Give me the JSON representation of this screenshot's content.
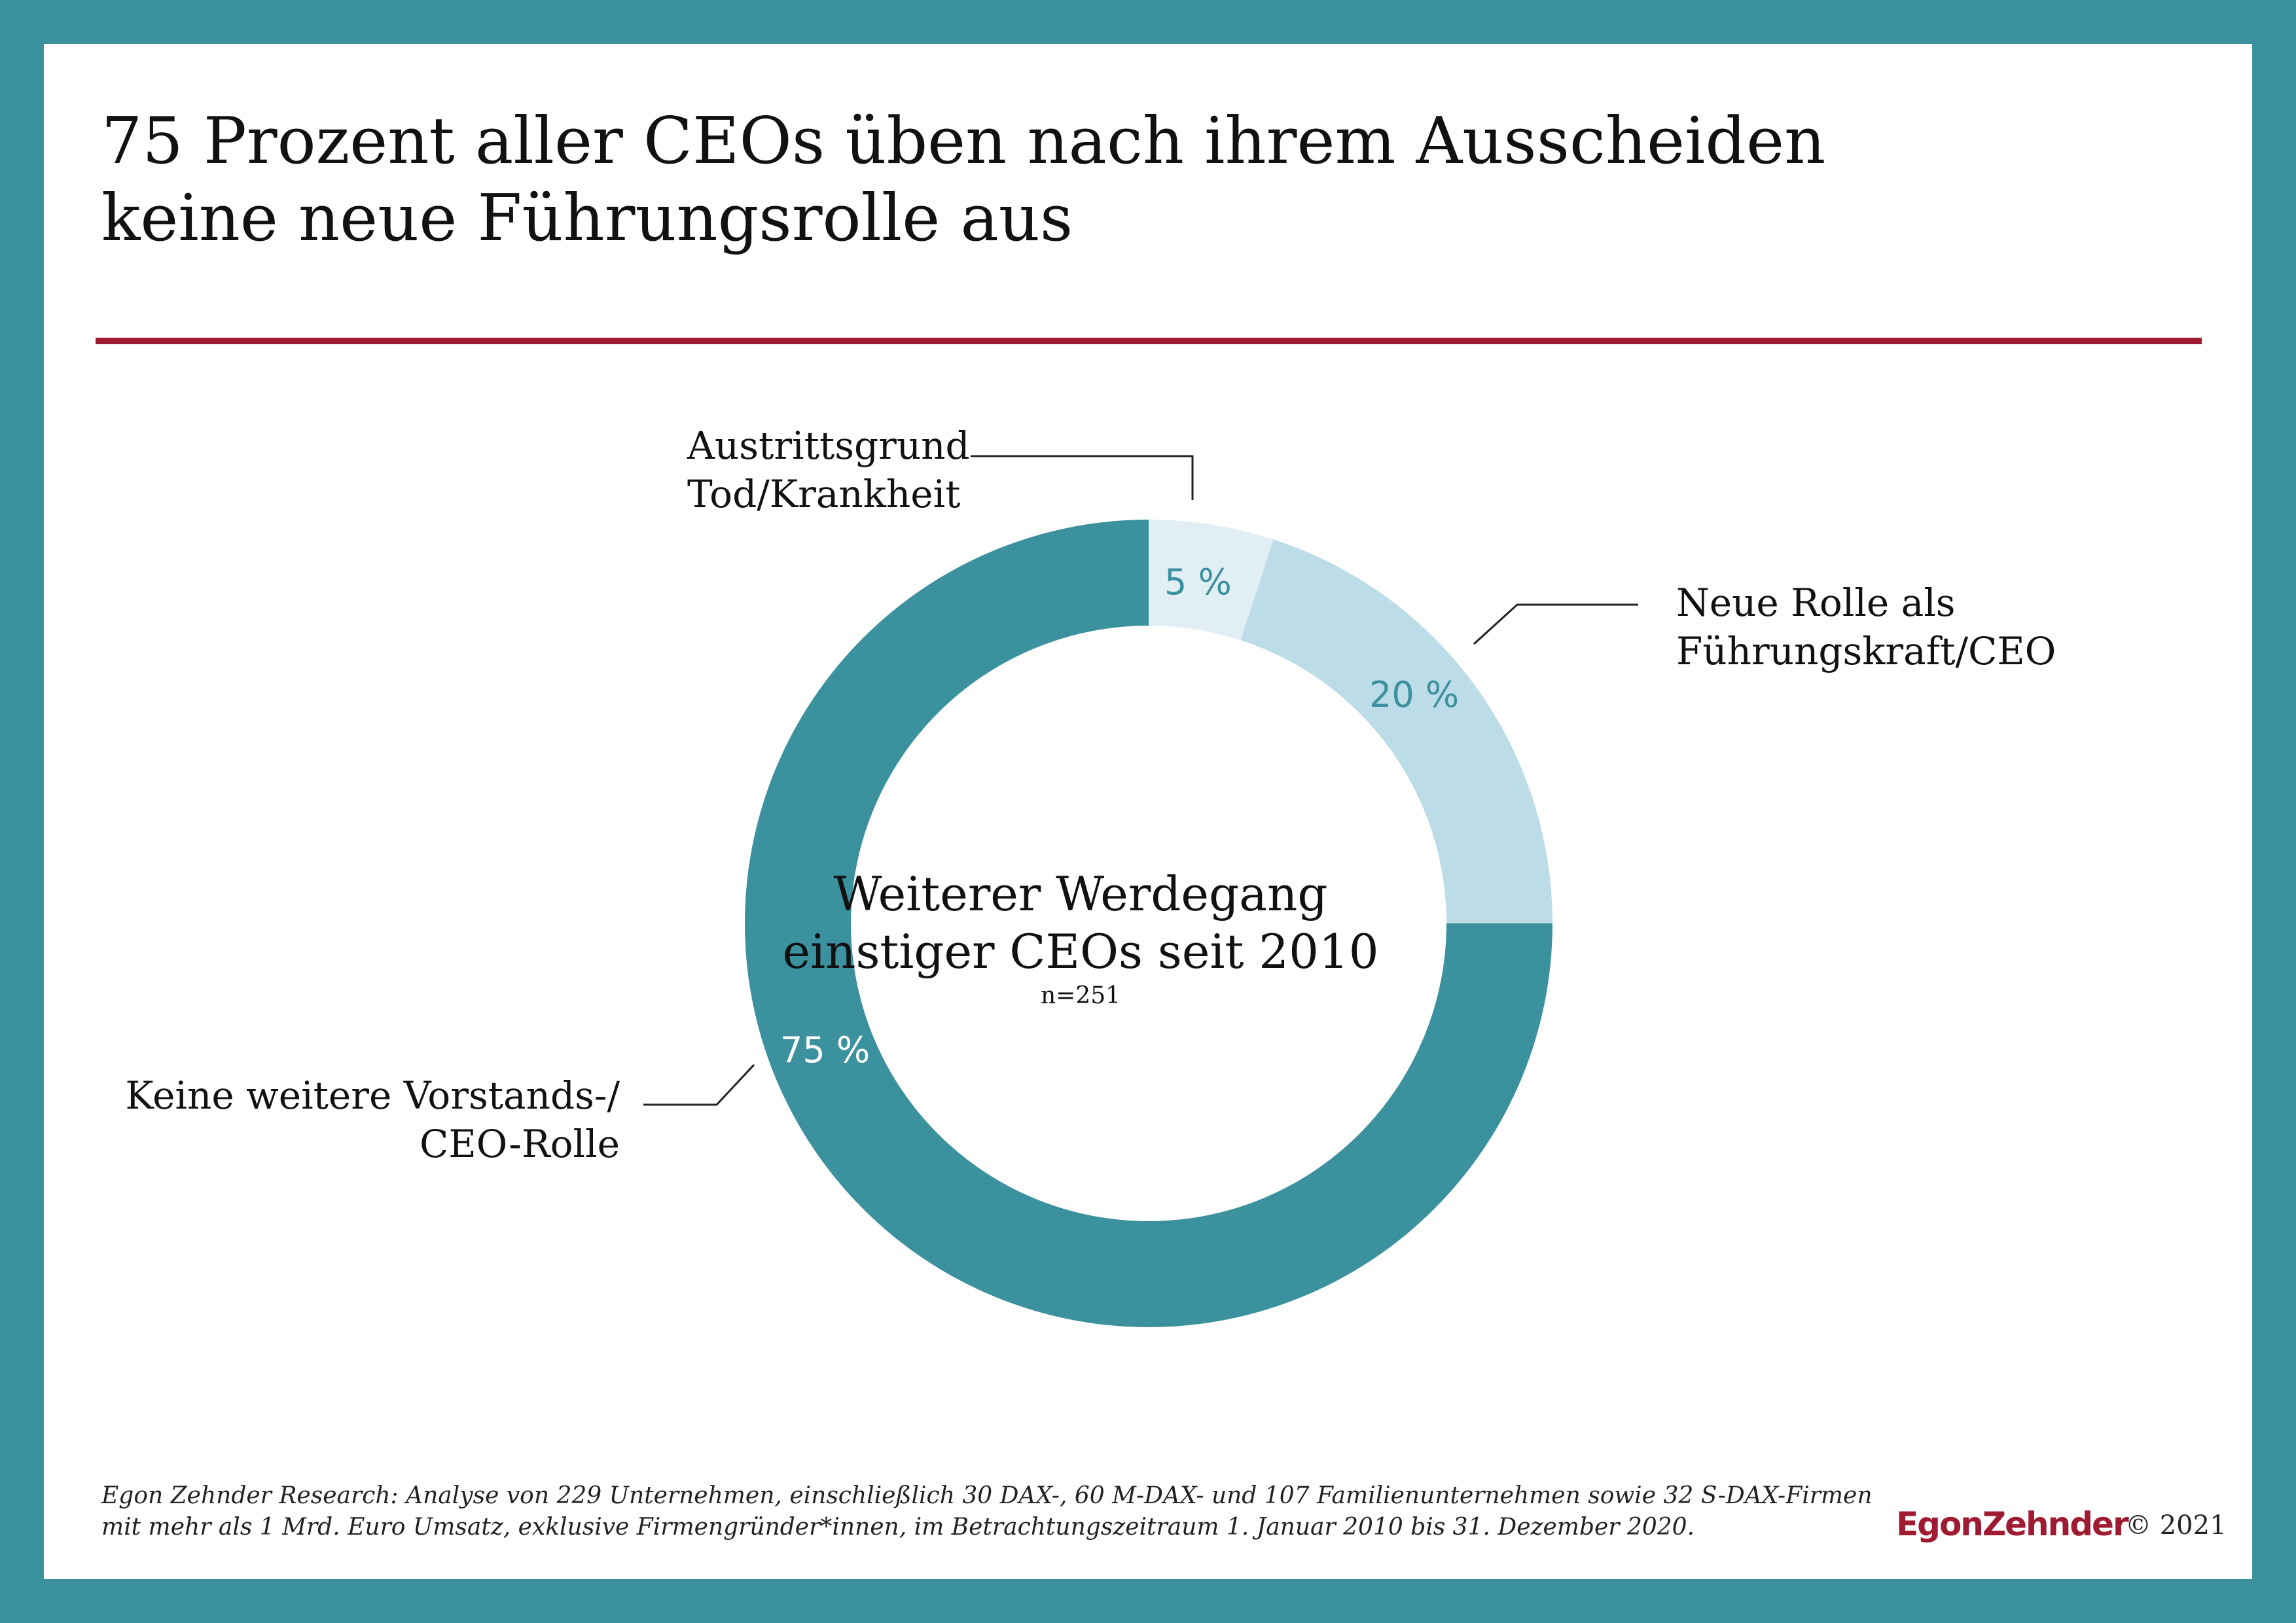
{
  "title_lines": [
    "75 Prozent aller CEOs üben nach ihrem Ausscheiden",
    "keine neue Führungsrolle aus"
  ],
  "colors": {
    "frame": "#3b919d",
    "accent_rule": "#9e1b32",
    "slice_dark": "#3b919d",
    "slice_light": "#bcdde8",
    "slice_lightest": "#e1eff4",
    "pct_dark_text": "#3b919d",
    "pct_light_text": "#ffffff"
  },
  "chart_data": {
    "type": "pie",
    "donut": true,
    "center_title_lines": [
      "Weiterer Werdegang",
      "einstiger CEOs seit 2010"
    ],
    "center_note": "n=251",
    "slices": [
      {
        "label_lines": [
          "Austrittsgrund",
          "Tod/Krankheit"
        ],
        "value": 5,
        "value_label": "5 %",
        "color": "#e1eff4"
      },
      {
        "label_lines": [
          "Neue Rolle als",
          "Führungskraft/CEO"
        ],
        "value": 20,
        "value_label": "20 %",
        "color": "#bcdde8"
      },
      {
        "label_lines": [
          "Keine weitere Vorstands-/",
          "CEO-Rolle"
        ],
        "value": 75,
        "value_label": "75 %",
        "color": "#3b919d"
      }
    ]
  },
  "footnote_lines": [
    "Egon Zehnder Research: Analyse von 229 Unternehmen, einschließlich 30 DAX-, 60 M-DAX- und 107 Familienunternehmen sowie 32 S-DAX-Firmen",
    "mit mehr als 1 Mrd. Euro Umsatz, exklusive Firmengründer*innen, im Betrachtungszeitraum 1. Januar 2010 bis 31. Dezember 2020."
  ],
  "logo": "EgonZehnder",
  "copyright": "© 2021"
}
